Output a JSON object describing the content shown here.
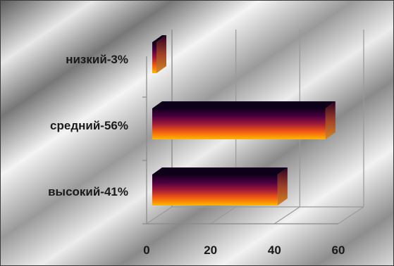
{
  "chart_data": {
    "type": "bar",
    "orientation": "horizontal",
    "style": "3d",
    "categories": [
      "низкий-3%",
      "средний-56%",
      "высокий-41%"
    ],
    "values": [
      3,
      56,
      41
    ],
    "xlim": [
      0,
      60
    ],
    "xticks": [
      "0",
      "20",
      "40",
      "60"
    ],
    "grid": true,
    "legend": "none",
    "colors": {
      "bar_top": "#0d0018",
      "bar_mid": "#9e1a38",
      "bar_upper": "#4a0040",
      "bar_lower": "#f25a12",
      "bar_bottom": "#ffb800",
      "end_cap": "#d9881f"
    }
  }
}
